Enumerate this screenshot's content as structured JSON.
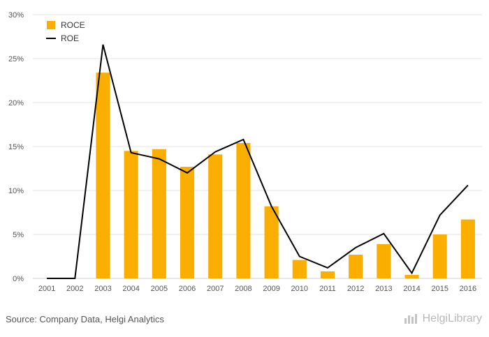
{
  "chart_data": {
    "type": "bar",
    "categories": [
      "2001",
      "2002",
      "2003",
      "2004",
      "2005",
      "2006",
      "2007",
      "2008",
      "2009",
      "2010",
      "2011",
      "2012",
      "2013",
      "2014",
      "2015",
      "2016"
    ],
    "series": [
      {
        "name": "ROCE",
        "kind": "bar",
        "color": "#F9AE00",
        "values": [
          0,
          0,
          23.4,
          14.5,
          14.7,
          12.7,
          14.1,
          15.4,
          8.2,
          2.1,
          0.8,
          2.7,
          3.9,
          0.4,
          5.0,
          6.7
        ]
      },
      {
        "name": "ROE",
        "kind": "line",
        "color": "#000000",
        "values": [
          0,
          0,
          26.6,
          14.3,
          13.6,
          12.0,
          14.4,
          15.8,
          8.2,
          2.5,
          1.2,
          3.5,
          5.1,
          0.6,
          7.2,
          10.6
        ]
      }
    ],
    "y_ticks": [
      "0%",
      "5%",
      "10%",
      "15%",
      "20%",
      "25%",
      "30%"
    ],
    "ylim": [
      0,
      30
    ],
    "grid": true,
    "legend_position": "top-left"
  },
  "footer": {
    "source": "Source: Company Data, Helgi Analytics",
    "brand": "HelgiLibrary"
  }
}
